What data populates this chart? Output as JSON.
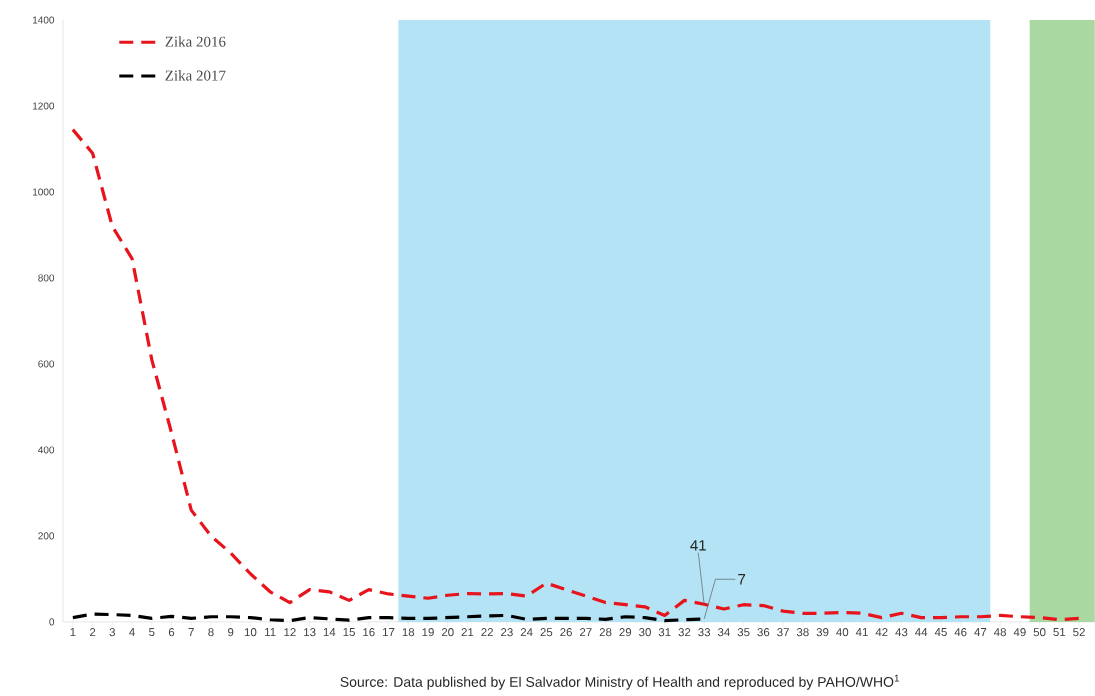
{
  "chart_data": {
    "type": "line",
    "x": [
      1,
      2,
      3,
      4,
      5,
      6,
      7,
      8,
      9,
      10,
      11,
      12,
      13,
      14,
      15,
      16,
      17,
      18,
      19,
      20,
      21,
      22,
      23,
      24,
      25,
      26,
      27,
      28,
      29,
      30,
      31,
      32,
      33,
      34,
      35,
      36,
      37,
      38,
      39,
      40,
      41,
      42,
      43,
      44,
      45,
      46,
      47,
      48,
      49,
      50,
      51,
      52
    ],
    "series": [
      {
        "name": "Zika 2016",
        "color": "#e8141c",
        "line_style": "dashed",
        "values": [
          1145,
          1090,
          920,
          845,
          610,
          440,
          260,
          200,
          160,
          112,
          70,
          45,
          75,
          70,
          50,
          75,
          65,
          60,
          55,
          62,
          66,
          65,
          66,
          60,
          90,
          75,
          60,
          45,
          40,
          35,
          15,
          50,
          41,
          30,
          40,
          38,
          25,
          20,
          20,
          22,
          20,
          10,
          20,
          10,
          10,
          12,
          12,
          15,
          12,
          10,
          5,
          8
        ]
      },
      {
        "name": "Zika 2017",
        "color": "#000000",
        "line_style": "dashed",
        "values": [
          10,
          18,
          17,
          15,
          8,
          13,
          8,
          12,
          12,
          10,
          5,
          3,
          10,
          7,
          4,
          10,
          10,
          8,
          8,
          10,
          12,
          14,
          15,
          6,
          8,
          8,
          8,
          6,
          12,
          10,
          3,
          5,
          7,
          null,
          null,
          null,
          null,
          null,
          null,
          null,
          null,
          null,
          null,
          null,
          null,
          null,
          null,
          null,
          null,
          null,
          null,
          null
        ]
      }
    ],
    "xlim": [
      0.5,
      52.8
    ],
    "xticks": [
      1,
      2,
      3,
      4,
      5,
      6,
      7,
      8,
      9,
      10,
      11,
      12,
      13,
      14,
      15,
      16,
      17,
      18,
      19,
      20,
      21,
      22,
      23,
      24,
      25,
      26,
      27,
      28,
      29,
      30,
      31,
      32,
      33,
      34,
      35,
      36,
      37,
      38,
      39,
      40,
      41,
      42,
      43,
      44,
      45,
      46,
      47,
      48,
      49,
      50,
      51,
      52
    ],
    "ylim": [
      0,
      1400
    ],
    "yticks": [
      0,
      200,
      400,
      600,
      800,
      1000,
      1200,
      1400
    ],
    "bands": [
      {
        "axis": "x",
        "from": 17.5,
        "to": 47.5,
        "color": "#b3e3f4"
      },
      {
        "axis": "x",
        "from": 49.5,
        "to": 52.8,
        "color": "#a9d9a0"
      }
    ],
    "annotations": [
      {
        "text": "41",
        "x": 33,
        "y": 41
      },
      {
        "text": "7",
        "x": 33,
        "y": 7
      },
      "Source: Data published by El Salvador Ministry of Health and reproduced by PAHO/WHO$^{1}$"
    ],
    "legend": "top left",
    "marker": "none",
    "grid": false
  }
}
